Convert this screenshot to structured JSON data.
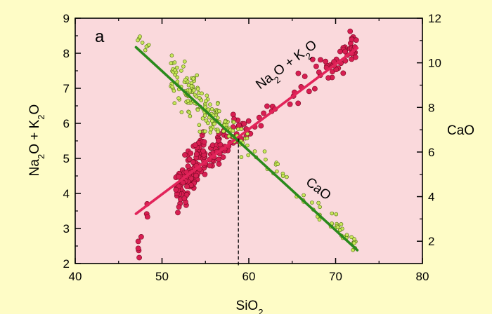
{
  "chart_data": {
    "type": "scatter",
    "panel_label": "a",
    "x_axis": {
      "label_main": "SiO",
      "label_sub": "2",
      "range": [
        40,
        80
      ],
      "ticks": [
        40,
        50,
        60,
        70,
        80
      ]
    },
    "y_axis_left": {
      "label_parts": [
        "Na",
        "2",
        "O + K",
        "2",
        "O"
      ],
      "range": [
        2,
        9
      ],
      "ticks": [
        2,
        3,
        4,
        5,
        6,
        7,
        8,
        9
      ]
    },
    "y_axis_right": {
      "label": "CaO",
      "range": [
        1.0,
        12.0
      ],
      "ticks": [
        2,
        4,
        6,
        8,
        10,
        12
      ]
    },
    "series": [
      {
        "name_parts": [
          "Na",
          "2",
          "O + K",
          "2",
          "O"
        ],
        "axis": "left",
        "color": "#e2245a",
        "point_color": "#d81e52",
        "fit_line": {
          "x": [
            47,
            72.5
          ],
          "y": [
            3.42,
            8.15
          ]
        },
        "point_groups": [
          {
            "x_center": 47.8,
            "x_spread": 0.6,
            "slope": 1.0,
            "intercept_at_center": 2.9,
            "noise": 0.15,
            "count": 8
          },
          {
            "x_center": 53.3,
            "x_spread": 1.7,
            "slope": 0.35,
            "intercept_at_center": 4.6,
            "noise": 0.35,
            "count": 120
          },
          {
            "x_center": 57.3,
            "x_spread": 2.5,
            "slope": 0.19,
            "intercept_at_center": 5.5,
            "noise": 0.3,
            "count": 55
          },
          {
            "x_center": 61.5,
            "x_spread": 2.5,
            "slope": 0.2,
            "intercept_at_center": 6.2,
            "noise": 0.2,
            "count": 12
          },
          {
            "x_center": 66.5,
            "x_spread": 2.0,
            "slope": 0.2,
            "intercept_at_center": 7.1,
            "noise": 0.22,
            "count": 14
          },
          {
            "x_center": 70.6,
            "x_spread": 1.8,
            "slope": 0.2,
            "intercept_at_center": 7.85,
            "noise": 0.2,
            "count": 45
          }
        ]
      },
      {
        "name": "CaO",
        "axis": "right",
        "color": "#2a8a1c",
        "point_color": "#c8e85a",
        "fit_line": {
          "x": [
            47,
            72.5
          ],
          "y": [
            10.7,
            1.6
          ]
        },
        "point_groups": [
          {
            "x_center": 47.8,
            "x_spread": 0.7,
            "slope": -0.3,
            "intercept_at_center": 10.9,
            "noise": 0.15,
            "count": 8
          },
          {
            "x_center": 53.8,
            "x_spread": 2.8,
            "slope": -0.36,
            "intercept_at_center": 8.4,
            "noise": 0.5,
            "count": 130
          },
          {
            "x_center": 58.5,
            "x_spread": 1.5,
            "slope": -0.36,
            "intercept_at_center": 6.8,
            "noise": 0.3,
            "count": 35
          },
          {
            "x_center": 62.5,
            "x_spread": 2.0,
            "slope": -0.36,
            "intercept_at_center": 5.4,
            "noise": 0.3,
            "count": 14
          },
          {
            "x_center": 67.0,
            "x_spread": 1.6,
            "slope": -0.36,
            "intercept_at_center": 3.75,
            "noise": 0.25,
            "count": 12
          },
          {
            "x_center": 70.8,
            "x_spread": 1.6,
            "slope": -0.36,
            "intercept_at_center": 2.4,
            "noise": 0.22,
            "count": 30
          }
        ]
      }
    ],
    "annotations": [
      {
        "type": "dashed-vertical",
        "x": 58.8,
        "y_from": 1.95,
        "y_to": 5.6,
        "axis": "left"
      }
    ],
    "colors": {
      "page_background": "#fefcc6",
      "plot_background": "#fad9dc"
    },
    "grid": false
  }
}
